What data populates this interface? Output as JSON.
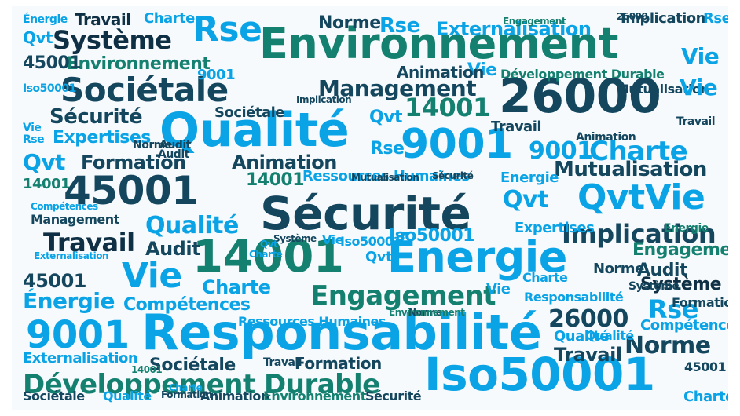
{
  "colors": {
    "dark": "#14465e",
    "teal": "#14806f",
    "blue": "#0aa3e6",
    "navy": "#0e2f44"
  },
  "words": [
    {
      "text": "Environnement",
      "color": "teal"
    },
    {
      "text": "Qualité",
      "color": "blue"
    },
    {
      "text": "Sécurité",
      "color": "dark"
    },
    {
      "text": "Responsabilité",
      "color": "blue"
    },
    {
      "text": "26000",
      "color": "dark"
    },
    {
      "text": "Sociétale",
      "color": "dark"
    },
    {
      "text": "9001",
      "color": "blue"
    },
    {
      "text": "45001",
      "color": "dark"
    },
    {
      "text": "14001",
      "color": "teal"
    },
    {
      "text": "Énergie",
      "color": "blue"
    },
    {
      "text": "Iso50001",
      "color": "blue"
    },
    {
      "text": "Développement Durable",
      "color": "teal"
    },
    {
      "text": "9001",
      "color": "blue"
    },
    {
      "text": "Rse",
      "color": "blue"
    },
    {
      "text": "Système",
      "color": "navy"
    },
    {
      "text": "Vie",
      "color": "blue"
    },
    {
      "text": "Management",
      "color": "dark"
    },
    {
      "text": "Externalisation",
      "color": "blue"
    },
    {
      "text": "Environnement",
      "color": "teal"
    },
    {
      "text": "Formation",
      "color": "dark"
    },
    {
      "text": "Animation",
      "color": "dark"
    },
    {
      "text": "Charte",
      "color": "blue"
    },
    {
      "text": "QvtVie",
      "color": "blue"
    },
    {
      "text": "Implication",
      "color": "dark"
    },
    {
      "text": "Mutualisation",
      "color": "dark"
    },
    {
      "text": "Engagement",
      "color": "teal"
    },
    {
      "text": "Norme",
      "color": "dark"
    },
    {
      "text": "Travail",
      "color": "navy"
    },
    {
      "text": "Vie",
      "color": "blue"
    },
    {
      "text": "Qvt",
      "color": "blue"
    },
    {
      "text": "Sécurité",
      "color": "dark"
    },
    {
      "text": "Expertises",
      "color": "blue"
    },
    {
      "text": "Ressources Humaines",
      "color": "blue"
    },
    {
      "text": "Iso50001",
      "color": "blue"
    },
    {
      "text": "26000",
      "color": "dark"
    },
    {
      "text": "Énergie",
      "color": "blue"
    },
    {
      "text": "Compétences",
      "color": "blue"
    },
    {
      "text": "Qualité",
      "color": "blue"
    },
    {
      "text": "Audit",
      "color": "dark"
    },
    {
      "text": "45001",
      "color": "dark"
    },
    {
      "text": "Charte",
      "color": "blue"
    },
    {
      "text": "Norme",
      "color": "dark"
    },
    {
      "text": "Travail",
      "color": "navy"
    },
    {
      "text": "Système",
      "color": "navy"
    },
    {
      "text": "Rse",
      "color": "blue"
    },
    {
      "text": "Sociétale",
      "color": "dark"
    },
    {
      "text": "14001",
      "color": "teal"
    },
    {
      "text": "Qvt",
      "color": "blue"
    },
    {
      "text": "Externalisation",
      "color": "blue"
    },
    {
      "text": "Responsabilité",
      "color": "blue"
    },
    {
      "text": "Formation",
      "color": "dark"
    },
    {
      "text": "Animation",
      "color": "dark"
    },
    {
      "text": "Environnement",
      "color": "teal"
    },
    {
      "text": "Sécurité",
      "color": "dark"
    },
    {
      "text": "Énergie",
      "color": "blue"
    },
    {
      "text": "Travail",
      "color": "dark"
    },
    {
      "text": "Vie",
      "color": "blue"
    },
    {
      "text": "Rse",
      "color": "blue"
    },
    {
      "text": "45001",
      "color": "dark"
    },
    {
      "text": "14001",
      "color": "teal"
    },
    {
      "text": "Qvt",
      "color": "blue"
    },
    {
      "text": "Charte",
      "color": "blue"
    },
    {
      "text": "Implication",
      "color": "dark"
    },
    {
      "text": "Rse",
      "color": "blue"
    },
    {
      "text": "Charte",
      "color": "blue"
    },
    {
      "text": "Norme",
      "color": "dark"
    },
    {
      "text": "Qualité",
      "color": "blue"
    },
    {
      "text": "Système",
      "color": "dark"
    },
    {
      "text": "9001",
      "color": "blue"
    },
    {
      "text": "Mutualisation",
      "color": "dark"
    },
    {
      "text": "Développement Durable",
      "color": "teal"
    },
    {
      "text": "Vie",
      "color": "blue"
    },
    {
      "text": "Qvt",
      "color": "blue"
    },
    {
      "text": "Audit",
      "color": "dark"
    },
    {
      "text": "Management",
      "color": "dark"
    },
    {
      "text": "Animation",
      "color": "dark"
    },
    {
      "text": "Système",
      "color": "dark"
    },
    {
      "text": "Engagement",
      "color": "teal"
    },
    {
      "text": "Norme",
      "color": "dark"
    },
    {
      "text": "Compétences",
      "color": "blue"
    },
    {
      "text": "Implication",
      "color": "dark"
    },
    {
      "text": "Travail",
      "color": "dark"
    },
    {
      "text": "Energie",
      "color": "blue"
    },
    {
      "text": "Iso50001",
      "color": "blue"
    },
    {
      "text": "Vie",
      "color": "blue"
    },
    {
      "text": "Qualité",
      "color": "blue"
    },
    {
      "text": "9001",
      "color": "blue"
    },
    {
      "text": "Rse",
      "color": "blue"
    },
    {
      "text": "Expertises",
      "color": "blue"
    },
    {
      "text": "Audit",
      "color": "dark"
    },
    {
      "text": "Formation",
      "color": "dark"
    },
    {
      "text": "Charte",
      "color": "blue"
    },
    {
      "text": "Vie",
      "color": "blue"
    },
    {
      "text": "14001",
      "color": "teal"
    },
    {
      "text": "45001",
      "color": "dark"
    },
    {
      "text": "26000",
      "color": "dark"
    },
    {
      "text": "Qvt",
      "color": "blue"
    },
    {
      "text": "Sécurité",
      "color": "dark"
    },
    {
      "text": "Sociétale",
      "color": "dark"
    },
    {
      "text": "Iso50001",
      "color": "blue"
    },
    {
      "text": "Charte",
      "color": "blue"
    },
    {
      "text": "Engagement",
      "color": "teal"
    },
    {
      "text": "Ressources Humaines",
      "color": "blue"
    },
    {
      "text": "Norme",
      "color": "dark"
    },
    {
      "text": "Environnement",
      "color": "teal"
    },
    {
      "text": "Compétences",
      "color": "blue"
    },
    {
      "text": "Travail",
      "color": "dark"
    },
    {
      "text": "Animation",
      "color": "dark"
    },
    {
      "text": "Mutualisation",
      "color": "dark"
    },
    {
      "text": "Externalisation",
      "color": "blue"
    },
    {
      "text": "Sociétale",
      "color": "dark"
    },
    {
      "text": "Qualité",
      "color": "blue"
    },
    {
      "text": "Charte",
      "color": "blue"
    },
    {
      "text": "Formation",
      "color": "dark"
    },
    {
      "text": "Rse",
      "color": "blue"
    },
    {
      "text": "Vie",
      "color": "blue"
    },
    {
      "text": "Energie",
      "color": "teal"
    },
    {
      "text": "Travail",
      "color": "dark"
    },
    {
      "text": "Qvt",
      "color": "blue"
    },
    {
      "text": "14001",
      "color": "teal"
    },
    {
      "text": "Audit",
      "color": "dark"
    }
  ]
}
